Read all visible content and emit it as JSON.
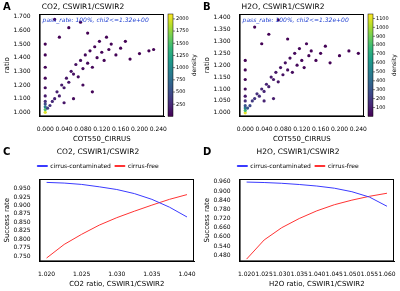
{
  "chart_data": [
    {
      "type": "scatter",
      "panel": "A",
      "title": "CO2, CSWIR1/CSWIR2",
      "annotation": "pass_rate: 100%, chi2<=1.32e+00",
      "x_label": "COT550_CIRRUS",
      "y_label": "ratio",
      "grid": false,
      "xlim": [
        -0.012,
        0.252
      ],
      "xticks": [
        {
          "value": 0,
          "label": "0.000"
        },
        {
          "value": 0.04,
          "label": "0.040"
        },
        {
          "value": 0.08,
          "label": "0.080"
        },
        {
          "value": 0.12,
          "label": "0.120"
        },
        {
          "value": 0.16,
          "label": "0.160"
        },
        {
          "value": 0.2,
          "label": "0.200"
        },
        {
          "value": 0.24,
          "label": "0.240"
        }
      ],
      "ylim": [
        0.97,
        1.72
      ],
      "yticks": [
        {
          "value": 1,
          "label": "1.000"
        },
        {
          "value": 1.1,
          "label": "1.100"
        },
        {
          "value": 1.2,
          "label": "1.200"
        },
        {
          "value": 1.3,
          "label": "1.300"
        },
        {
          "value": 1.4,
          "label": "1.400"
        },
        {
          "value": 1.5,
          "label": "1.500"
        },
        {
          "value": 1.6,
          "label": "1.600"
        },
        {
          "value": 1.7,
          "label": "1.700"
        }
      ],
      "colorbar": {
        "label": "density",
        "range": [
          0,
          2100
        ],
        "ticks": [
          250,
          500,
          750,
          1000,
          1250,
          1500,
          1750,
          2000
        ]
      },
      "x": [
        0,
        0,
        0,
        0,
        0,
        0,
        0,
        0,
        0,
        0,
        0,
        0.005,
        0.01,
        0.015,
        0.02,
        0.025,
        0.03,
        0.035,
        0.04,
        0.045,
        0.05,
        0.055,
        0.06,
        0.065,
        0.07,
        0.075,
        0.08,
        0.085,
        0.09,
        0.095,
        0.1,
        0.105,
        0.11,
        0.115,
        0.12,
        0.125,
        0.13,
        0.135,
        0.14,
        0.15,
        0.16,
        0.17,
        0.18,
        0.2,
        0.22,
        0.23,
        0.02,
        0.05,
        0.075,
        0.09,
        0.03,
        0.06,
        0.04,
        0.1,
        0.08
      ],
      "values": [
        1.0,
        1.02,
        1.04,
        1.06,
        1.08,
        1.12,
        1.18,
        1.25,
        1.33,
        1.42,
        1.5,
        1.03,
        1.05,
        1.08,
        1.1,
        1.15,
        1.12,
        1.2,
        1.18,
        1.25,
        1.22,
        1.3,
        1.28,
        1.35,
        1.26,
        1.38,
        1.32,
        1.42,
        1.36,
        1.45,
        1.33,
        1.48,
        1.4,
        1.52,
        1.44,
        1.38,
        1.55,
        1.46,
        1.5,
        1.42,
        1.47,
        1.52,
        1.39,
        1.43,
        1.45,
        1.46,
        1.68,
        1.62,
        1.66,
        1.58,
        1.55,
        1.1,
        1.07,
        1.15,
        1.2
      ],
      "density": [
        2000,
        1500,
        900,
        500,
        300,
        150,
        80,
        40,
        20,
        10,
        5,
        400,
        300,
        250,
        200,
        180,
        170,
        150,
        140,
        120,
        110,
        100,
        90,
        80,
        75,
        70,
        60,
        50,
        50,
        40,
        40,
        30,
        30,
        25,
        20,
        20,
        15,
        15,
        10,
        10,
        8,
        6,
        5,
        4,
        3,
        3,
        2,
        2,
        2,
        2,
        3,
        60,
        120,
        30,
        50
      ]
    },
    {
      "type": "scatter",
      "panel": "B",
      "title": "H2O, CSWIR1/CSWIR2",
      "annotation": "pass_rate: 100%, chi2<=1.32e+00",
      "x_label": "COT550_CIRRUS",
      "y_label": "ratio",
      "grid": false,
      "xlim": [
        -0.012,
        0.252
      ],
      "xticks": [
        {
          "value": 0,
          "label": "0.000"
        },
        {
          "value": 0.04,
          "label": "0.040"
        },
        {
          "value": 0.08,
          "label": "0.080"
        },
        {
          "value": 0.12,
          "label": "0.120"
        },
        {
          "value": 0.16,
          "label": "0.160"
        },
        {
          "value": 0.2,
          "label": "0.200"
        },
        {
          "value": 0.24,
          "label": "0.240"
        }
      ],
      "ylim": [
        0.985,
        1.415
      ],
      "yticks": [
        {
          "value": 1,
          "label": "1.000"
        },
        {
          "value": 1.05,
          "label": "1.050"
        },
        {
          "value": 1.1,
          "label": "1.100"
        },
        {
          "value": 1.15,
          "label": "1.150"
        },
        {
          "value": 1.2,
          "label": "1.200"
        },
        {
          "value": 1.25,
          "label": "1.250"
        },
        {
          "value": 1.3,
          "label": "1.300"
        },
        {
          "value": 1.35,
          "label": "1.350"
        },
        {
          "value": 1.4,
          "label": "1.400"
        }
      ],
      "colorbar": {
        "label": "density",
        "range": [
          0,
          1150
        ],
        "ticks": [
          100,
          200,
          300,
          400,
          500,
          600,
          700,
          800,
          900,
          1000,
          1100
        ]
      },
      "x": [
        0,
        0,
        0,
        0,
        0,
        0,
        0,
        0,
        0,
        0,
        0.005,
        0.01,
        0.015,
        0.02,
        0.025,
        0.03,
        0.035,
        0.04,
        0.045,
        0.05,
        0.055,
        0.06,
        0.065,
        0.07,
        0.075,
        0.08,
        0.085,
        0.09,
        0.095,
        0.1,
        0.105,
        0.11,
        0.115,
        0.12,
        0.125,
        0.13,
        0.135,
        0.14,
        0.15,
        0.16,
        0.17,
        0.18,
        0.2,
        0.22,
        0.24,
        0.02,
        0.05,
        0.07,
        0.09,
        0.035,
        0.06,
        0.04
      ],
      "values": [
        1.0,
        1.01,
        1.02,
        1.03,
        1.05,
        1.07,
        1.1,
        1.14,
        1.18,
        1.22,
        1.02,
        1.03,
        1.05,
        1.06,
        1.08,
        1.07,
        1.1,
        1.09,
        1.12,
        1.11,
        1.15,
        1.14,
        1.17,
        1.13,
        1.19,
        1.16,
        1.21,
        1.18,
        1.23,
        1.17,
        1.25,
        1.2,
        1.27,
        1.22,
        1.19,
        1.29,
        1.24,
        1.26,
        1.22,
        1.25,
        1.28,
        1.21,
        1.24,
        1.26,
        1.25,
        1.36,
        1.33,
        1.39,
        1.31,
        1.29,
        1.06,
        1.05
      ],
      "density": [
        1100,
        800,
        500,
        300,
        150,
        80,
        40,
        20,
        10,
        5,
        300,
        250,
        200,
        180,
        160,
        150,
        130,
        120,
        110,
        100,
        90,
        80,
        70,
        65,
        60,
        55,
        45,
        40,
        35,
        35,
        30,
        25,
        20,
        20,
        18,
        15,
        12,
        10,
        8,
        6,
        5,
        4,
        3,
        3,
        2,
        2,
        2,
        2,
        2,
        3,
        90,
        110
      ]
    },
    {
      "type": "line",
      "panel": "C",
      "title": "CO2, CSWIR1/CSWIR2",
      "x_label": "CO2 ratio, CSWIR1/CSWIR2",
      "y_label": "Success rate",
      "grid": false,
      "legend": "top",
      "xlim": [
        1.019,
        1.041
      ],
      "xticks": [
        {
          "value": 1.02,
          "label": "1.020"
        },
        1.025,
        {
          "value": 1.03,
          "label": "1.030"
        },
        1.035,
        {
          "value": 1.04,
          "label": "1.040"
        }
      ],
      "ylim": [
        0.735,
        0.978
      ],
      "yticks": [
        {
          "value": 0.75,
          "label": "0.750"
        },
        0.775,
        {
          "value": 0.8,
          "label": "0.800"
        },
        0.825,
        {
          "value": 0.85,
          "label": "0.850"
        },
        0.875,
        {
          "value": 0.9,
          "label": "0.900"
        },
        0.925,
        {
          "value": 0.95,
          "label": "0.950"
        }
      ],
      "x": [
        1.02,
        1.0225,
        1.025,
        1.0275,
        1.03,
        1.0325,
        1.035,
        1.0375,
        1.04
      ],
      "series": [
        {
          "name": "cirrus-contaminated",
          "color": "#3a3aff",
          "values": [
            0.968,
            0.966,
            0.962,
            0.955,
            0.947,
            0.935,
            0.918,
            0.895,
            0.866
          ]
        },
        {
          "name": "cirrus-free",
          "color": "#ff3333",
          "values": [
            0.745,
            0.785,
            0.815,
            0.842,
            0.864,
            0.883,
            0.901,
            0.918,
            0.932
          ]
        }
      ]
    },
    {
      "type": "line",
      "panel": "D",
      "title": "H2O, CSWIR1/CSWIR2",
      "x_label": "H2O ratio, CSWIR1/CSWIR2",
      "y_label": "Success rate",
      "grid": false,
      "legend": "top",
      "xlim": [
        1.018,
        1.062
      ],
      "xticks": [
        {
          "value": 1.02,
          "label": "1.020"
        },
        1.025,
        {
          "value": 1.03,
          "label": "1.030"
        },
        1.035,
        {
          "value": 1.04,
          "label": "1.040"
        },
        1.045,
        {
          "value": 1.05,
          "label": "1.050"
        },
        1.055,
        {
          "value": 1.06,
          "label": "1.060"
        }
      ],
      "ylim": [
        0.44,
        0.978
      ],
      "yticks": [
        {
          "value": 0.48,
          "label": "0.480"
        },
        {
          "value": 0.54,
          "label": "0.540"
        },
        {
          "value": 0.6,
          "label": "0.600"
        },
        {
          "value": 0.66,
          "label": "0.660"
        },
        {
          "value": 0.72,
          "label": "0.720"
        },
        {
          "value": 0.78,
          "label": "0.780"
        },
        {
          "value": 0.84,
          "label": "0.840"
        },
        {
          "value": 0.9,
          "label": "0.900"
        },
        {
          "value": 0.96,
          "label": "0.960"
        }
      ],
      "x": [
        1.02,
        1.025,
        1.03,
        1.035,
        1.04,
        1.045,
        1.05,
        1.055,
        1.06
      ],
      "series": [
        {
          "name": "cirrus-contaminated",
          "color": "#3a3aff",
          "values": [
            0.958,
            0.955,
            0.95,
            0.942,
            0.932,
            0.918,
            0.895,
            0.86,
            0.8
          ]
        },
        {
          "name": "cirrus-free",
          "color": "#ff3333",
          "values": [
            0.455,
            0.58,
            0.66,
            0.72,
            0.77,
            0.81,
            0.84,
            0.865,
            0.885
          ]
        }
      ]
    }
  ]
}
